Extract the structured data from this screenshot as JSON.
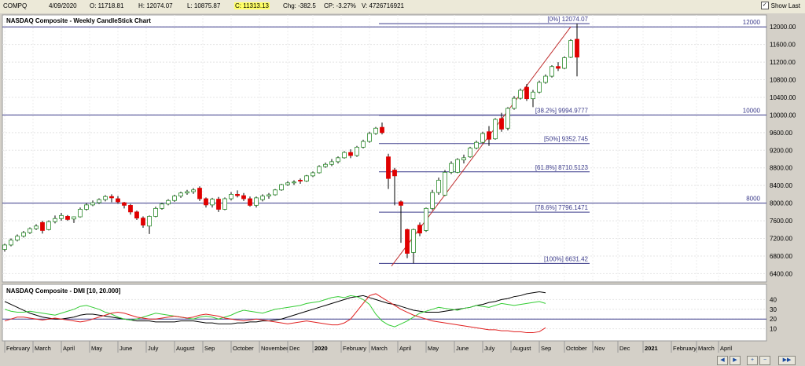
{
  "topbar": {
    "symbol": "COMPQ",
    "date": "4/09/2020",
    "open": "O: 11718.81",
    "high": "H: 12074.07",
    "low": "L: 10875.87",
    "close": "C: 11313.13",
    "chg": "Chg: -382.5",
    "cp": "CP: -3.27%",
    "vol": "V: 4726716921",
    "show_last": "Show Last"
  },
  "colors": {
    "up": "#ffffff",
    "down": "#e00000",
    "fib_line": "#3a3a8a",
    "trend": "#c03030",
    "dmi_plus": "#33cc33",
    "dmi_minus": "#e02020",
    "adx": "#000000"
  },
  "chart_data": [
    {
      "type": "candlestick",
      "title": "NASDAQ Composite - Weekly CandleStick Chart",
      "ylim": [
        6300,
        12200
      ],
      "y_ticks": [
        6400,
        6800,
        7200,
        7600,
        8000,
        8400,
        8800,
        9200,
        9600,
        10000,
        10400,
        10800,
        11200,
        11600,
        12000
      ],
      "y_tick_labels": [
        "6400.00",
        "6800.00",
        "7200.00",
        "7600.00",
        "8000.00",
        "8400.00",
        "8800.00",
        "9200.00",
        "9600.00",
        "10000.00",
        "10400.00",
        "10800.00",
        "11200.00",
        "11600.00",
        "12000.00"
      ],
      "horizontal_levels": [
        {
          "value": 12000,
          "label": "12000"
        },
        {
          "value": 10000,
          "label": "10000"
        },
        {
          "value": 8000,
          "label": "8000"
        }
      ],
      "fibonacci": [
        {
          "value": 12074.07,
          "label": "[0%] 12074.07"
        },
        {
          "value": 9994.9777,
          "label": "[38.2%] 9994.9777"
        },
        {
          "value": 9352.745,
          "label": "[50%] 9352.745"
        },
        {
          "value": 8710.5123,
          "label": "[61.8%] 8710.5123"
        },
        {
          "value": 7796.1471,
          "label": "[78.6%] 7796.1471"
        },
        {
          "value": 6631.42,
          "label": "[100%] 6631.42"
        }
      ],
      "trendline": {
        "from": {
          "week": 61.5,
          "value": 6570
        },
        "to": {
          "week": 90,
          "value": 12000
        }
      },
      "candles": [
        {
          "o": 6950,
          "h": 7080,
          "l": 6900,
          "c": 7050
        },
        {
          "o": 7050,
          "h": 7200,
          "l": 7020,
          "c": 7160
        },
        {
          "o": 7160,
          "h": 7290,
          "l": 7130,
          "c": 7250
        },
        {
          "o": 7250,
          "h": 7370,
          "l": 7220,
          "c": 7330
        },
        {
          "o": 7330,
          "h": 7450,
          "l": 7300,
          "c": 7420
        },
        {
          "o": 7420,
          "h": 7520,
          "l": 7390,
          "c": 7480
        },
        {
          "o": 7560,
          "h": 7600,
          "l": 7310,
          "c": 7380
        },
        {
          "o": 7400,
          "h": 7610,
          "l": 7380,
          "c": 7580
        },
        {
          "o": 7580,
          "h": 7720,
          "l": 7540,
          "c": 7650
        },
        {
          "o": 7650,
          "h": 7780,
          "l": 7600,
          "c": 7720
        },
        {
          "o": 7700,
          "h": 7730,
          "l": 7600,
          "c": 7630
        },
        {
          "o": 7640,
          "h": 7700,
          "l": 7550,
          "c": 7690
        },
        {
          "o": 7690,
          "h": 7900,
          "l": 7670,
          "c": 7860
        },
        {
          "o": 7860,
          "h": 8000,
          "l": 7830,
          "c": 7960
        },
        {
          "o": 7960,
          "h": 8060,
          "l": 7930,
          "c": 8010
        },
        {
          "o": 8010,
          "h": 8110,
          "l": 7980,
          "c": 8080
        },
        {
          "o": 8080,
          "h": 8180,
          "l": 8040,
          "c": 8150
        },
        {
          "o": 8150,
          "h": 8200,
          "l": 8020,
          "c": 8120
        },
        {
          "o": 8100,
          "h": 8160,
          "l": 7990,
          "c": 8030
        },
        {
          "o": 8010,
          "h": 8030,
          "l": 7880,
          "c": 7950
        },
        {
          "o": 7950,
          "h": 7980,
          "l": 7740,
          "c": 7800
        },
        {
          "o": 7800,
          "h": 7830,
          "l": 7620,
          "c": 7660
        },
        {
          "o": 7660,
          "h": 7700,
          "l": 7440,
          "c": 7500
        },
        {
          "o": 7480,
          "h": 7720,
          "l": 7300,
          "c": 7700
        },
        {
          "o": 7700,
          "h": 7920,
          "l": 7680,
          "c": 7880
        },
        {
          "o": 7880,
          "h": 8010,
          "l": 7850,
          "c": 7980
        },
        {
          "o": 7980,
          "h": 8090,
          "l": 7950,
          "c": 8060
        },
        {
          "o": 8060,
          "h": 8190,
          "l": 8030,
          "c": 8160
        },
        {
          "o": 8160,
          "h": 8260,
          "l": 8120,
          "c": 8230
        },
        {
          "o": 8230,
          "h": 8300,
          "l": 8190,
          "c": 8260
        },
        {
          "o": 8260,
          "h": 8340,
          "l": 8210,
          "c": 8300
        },
        {
          "o": 8340,
          "h": 8380,
          "l": 8050,
          "c": 8100
        },
        {
          "o": 8100,
          "h": 8130,
          "l": 7900,
          "c": 7960
        },
        {
          "o": 7960,
          "h": 8120,
          "l": 7900,
          "c": 8090
        },
        {
          "o": 8090,
          "h": 8140,
          "l": 7800,
          "c": 7860
        },
        {
          "o": 7860,
          "h": 8130,
          "l": 7840,
          "c": 8100
        },
        {
          "o": 8100,
          "h": 8250,
          "l": 8060,
          "c": 8200
        },
        {
          "o": 8200,
          "h": 8290,
          "l": 8130,
          "c": 8170
        },
        {
          "o": 8170,
          "h": 8230,
          "l": 8050,
          "c": 8100
        },
        {
          "o": 8100,
          "h": 8150,
          "l": 7920,
          "c": 7950
        },
        {
          "o": 7950,
          "h": 8150,
          "l": 7900,
          "c": 8120
        },
        {
          "o": 8080,
          "h": 8200,
          "l": 8040,
          "c": 8160
        },
        {
          "o": 8160,
          "h": 8230,
          "l": 8100,
          "c": 8190
        },
        {
          "o": 8190,
          "h": 8320,
          "l": 8170,
          "c": 8300
        },
        {
          "o": 8300,
          "h": 8440,
          "l": 8280,
          "c": 8420
        },
        {
          "o": 8420,
          "h": 8500,
          "l": 8390,
          "c": 8460
        },
        {
          "o": 8460,
          "h": 8520,
          "l": 8410,
          "c": 8480
        },
        {
          "o": 8520,
          "h": 8560,
          "l": 8440,
          "c": 8500
        },
        {
          "o": 8500,
          "h": 8640,
          "l": 8480,
          "c": 8620
        },
        {
          "o": 8620,
          "h": 8720,
          "l": 8590,
          "c": 8690
        },
        {
          "o": 8690,
          "h": 8860,
          "l": 8670,
          "c": 8830
        },
        {
          "o": 8830,
          "h": 8920,
          "l": 8800,
          "c": 8880
        },
        {
          "o": 8880,
          "h": 9000,
          "l": 8840,
          "c": 8940
        },
        {
          "o": 8940,
          "h": 9060,
          "l": 8900,
          "c": 9030
        },
        {
          "o": 9030,
          "h": 9180,
          "l": 9010,
          "c": 9150
        },
        {
          "o": 9150,
          "h": 9220,
          "l": 9020,
          "c": 9080
        },
        {
          "o": 9080,
          "h": 9300,
          "l": 9050,
          "c": 9270
        },
        {
          "o": 9270,
          "h": 9440,
          "l": 9240,
          "c": 9400
        },
        {
          "o": 9400,
          "h": 9620,
          "l": 9370,
          "c": 9580
        },
        {
          "o": 9580,
          "h": 9730,
          "l": 9550,
          "c": 9700
        },
        {
          "o": 9720,
          "h": 9830,
          "l": 9560,
          "c": 9600
        },
        {
          "o": 9050,
          "h": 9120,
          "l": 8320,
          "c": 8560
        },
        {
          "o": 8750,
          "h": 8800,
          "l": 7950,
          "c": 8620
        },
        {
          "o": 8030,
          "h": 8060,
          "l": 7100,
          "c": 7950
        },
        {
          "o": 7400,
          "h": 7420,
          "l": 6750,
          "c": 6860
        },
        {
          "o": 6880,
          "h": 7420,
          "l": 6631,
          "c": 7400
        },
        {
          "o": 7500,
          "h": 7560,
          "l": 7250,
          "c": 7320
        },
        {
          "o": 7380,
          "h": 7900,
          "l": 7350,
          "c": 7880
        },
        {
          "o": 7880,
          "h": 8300,
          "l": 7840,
          "c": 8240
        },
        {
          "o": 8240,
          "h": 8580,
          "l": 8190,
          "c": 8520
        },
        {
          "o": 8180,
          "h": 8750,
          "l": 8160,
          "c": 8700
        },
        {
          "o": 8700,
          "h": 8950,
          "l": 8660,
          "c": 8900
        },
        {
          "o": 8700,
          "h": 9020,
          "l": 8680,
          "c": 8990
        },
        {
          "o": 8980,
          "h": 9100,
          "l": 8900,
          "c": 9030
        },
        {
          "o": 9050,
          "h": 9280,
          "l": 9030,
          "c": 9250
        },
        {
          "o": 9250,
          "h": 9420,
          "l": 9220,
          "c": 9380
        },
        {
          "o": 9380,
          "h": 9620,
          "l": 9360,
          "c": 9580
        },
        {
          "o": 9620,
          "h": 9750,
          "l": 9300,
          "c": 9450
        },
        {
          "o": 9460,
          "h": 9930,
          "l": 9440,
          "c": 9900
        },
        {
          "o": 9920,
          "h": 10050,
          "l": 9620,
          "c": 9680
        },
        {
          "o": 9700,
          "h": 10180,
          "l": 9650,
          "c": 10150
        },
        {
          "o": 10150,
          "h": 10430,
          "l": 10120,
          "c": 10380
        },
        {
          "o": 10380,
          "h": 10600,
          "l": 10350,
          "c": 10560
        },
        {
          "o": 10630,
          "h": 10700,
          "l": 10320,
          "c": 10370
        },
        {
          "o": 10370,
          "h": 10570,
          "l": 10180,
          "c": 10520
        },
        {
          "o": 10520,
          "h": 10780,
          "l": 10490,
          "c": 10740
        },
        {
          "o": 10740,
          "h": 10920,
          "l": 10710,
          "c": 10880
        },
        {
          "o": 10880,
          "h": 11130,
          "l": 10850,
          "c": 11100
        },
        {
          "o": 11100,
          "h": 11200,
          "l": 11000,
          "c": 11060
        },
        {
          "o": 11060,
          "h": 11330,
          "l": 11040,
          "c": 11300
        },
        {
          "o": 11310,
          "h": 11720,
          "l": 11290,
          "c": 11690
        },
        {
          "o": 11718.81,
          "h": 12074.07,
          "l": 10875.87,
          "c": 11313.13
        }
      ]
    },
    {
      "type": "line",
      "title": "NASDAQ Composite - DMI [10, 20.000]",
      "ylim": [
        0,
        50
      ],
      "y_ticks": [
        10,
        20,
        30,
        40
      ],
      "y_tick_labels": [
        "10",
        "20",
        "30",
        "40"
      ],
      "reference_level": 20,
      "x_labels": [
        {
          "week": 0.5,
          "label": "February"
        },
        {
          "week": 5,
          "label": "March"
        },
        {
          "week": 9.5,
          "label": "April"
        },
        {
          "week": 14,
          "label": "May"
        },
        {
          "week": 18.5,
          "label": "June"
        },
        {
          "week": 23,
          "label": "July"
        },
        {
          "week": 27.5,
          "label": "August"
        },
        {
          "week": 32,
          "label": "Sep"
        },
        {
          "week": 36.5,
          "label": "October"
        },
        {
          "week": 41,
          "label": "November"
        },
        {
          "week": 45.5,
          "label": "Dec"
        },
        {
          "week": 49.5,
          "label": "2020",
          "bold": true
        },
        {
          "week": 54,
          "label": "February"
        },
        {
          "week": 58.5,
          "label": "March"
        },
        {
          "week": 63,
          "label": "April"
        },
        {
          "week": 67.5,
          "label": "May"
        },
        {
          "week": 72,
          "label": "June"
        },
        {
          "week": 76.5,
          "label": "July"
        },
        {
          "week": 81,
          "label": "August"
        },
        {
          "week": 85.5,
          "label": "Sep"
        },
        {
          "week": 89.5,
          "label": "October"
        },
        {
          "week": 94,
          "label": "Nov"
        },
        {
          "week": 98,
          "label": "Dec"
        },
        {
          "week": 102,
          "label": "2021",
          "bold": true
        },
        {
          "week": 106.5,
          "label": "February"
        },
        {
          "week": 110.5,
          "label": "March"
        },
        {
          "week": 114,
          "label": "April"
        }
      ],
      "series": [
        {
          "key": "adx",
          "points": [
            38,
            35,
            32,
            29,
            26,
            24,
            22,
            21,
            20,
            20,
            21,
            22,
            24,
            25,
            25,
            24,
            23,
            22,
            21,
            20,
            19,
            18,
            18,
            18,
            17,
            17,
            17,
            17,
            18,
            18,
            18,
            17,
            16,
            16,
            15,
            15,
            15,
            16,
            16,
            17,
            17,
            18,
            18,
            19,
            20,
            22,
            24,
            26,
            28,
            30,
            32,
            34,
            36,
            38,
            40,
            42,
            43,
            44,
            42,
            40,
            38,
            36,
            35,
            33,
            31,
            29,
            28,
            27,
            27,
            27,
            28,
            29,
            30,
            31,
            32,
            34,
            35,
            37,
            38,
            40,
            41,
            43,
            44,
            46,
            47,
            48,
            47
          ]
        },
        {
          "key": "plus",
          "points": [
            30,
            28,
            27,
            27,
            28,
            27,
            26,
            25,
            24,
            26,
            28,
            30,
            33,
            34,
            32,
            30,
            27,
            25,
            22,
            20,
            19,
            20,
            22,
            24,
            26,
            25,
            24,
            23,
            22,
            21,
            20,
            22,
            23,
            22,
            20,
            22,
            24,
            27,
            29,
            28,
            27,
            26,
            28,
            30,
            31,
            32,
            33,
            34,
            36,
            37,
            38,
            40,
            42,
            43,
            42,
            44,
            43,
            40,
            35,
            25,
            18,
            14,
            12,
            15,
            18,
            22,
            26,
            28,
            30,
            32,
            31,
            30,
            29,
            31,
            32,
            34,
            33,
            32,
            34,
            36,
            35,
            34,
            35,
            36,
            37,
            38,
            36
          ]
        },
        {
          "key": "minus",
          "points": [
            18,
            20,
            22,
            22,
            21,
            20,
            19,
            20,
            21,
            20,
            19,
            18,
            17,
            18,
            20,
            22,
            24,
            26,
            27,
            26,
            24,
            22,
            21,
            20,
            20,
            21,
            22,
            23,
            22,
            21,
            22,
            24,
            25,
            24,
            23,
            21,
            20,
            19,
            18,
            19,
            20,
            19,
            18,
            17,
            16,
            15,
            16,
            17,
            18,
            17,
            16,
            15,
            14,
            14,
            16,
            20,
            28,
            36,
            44,
            46,
            42,
            38,
            34,
            30,
            27,
            24,
            22,
            20,
            18,
            17,
            16,
            15,
            14,
            13,
            12,
            11,
            10,
            9,
            9,
            8,
            8,
            7,
            7,
            6,
            6,
            7,
            11
          ]
        }
      ]
    }
  ],
  "scrollbar": {
    "prev": "◀",
    "next": "▶",
    "zoom_in": "+",
    "zoom_out": "−",
    "last": "▶▶"
  }
}
